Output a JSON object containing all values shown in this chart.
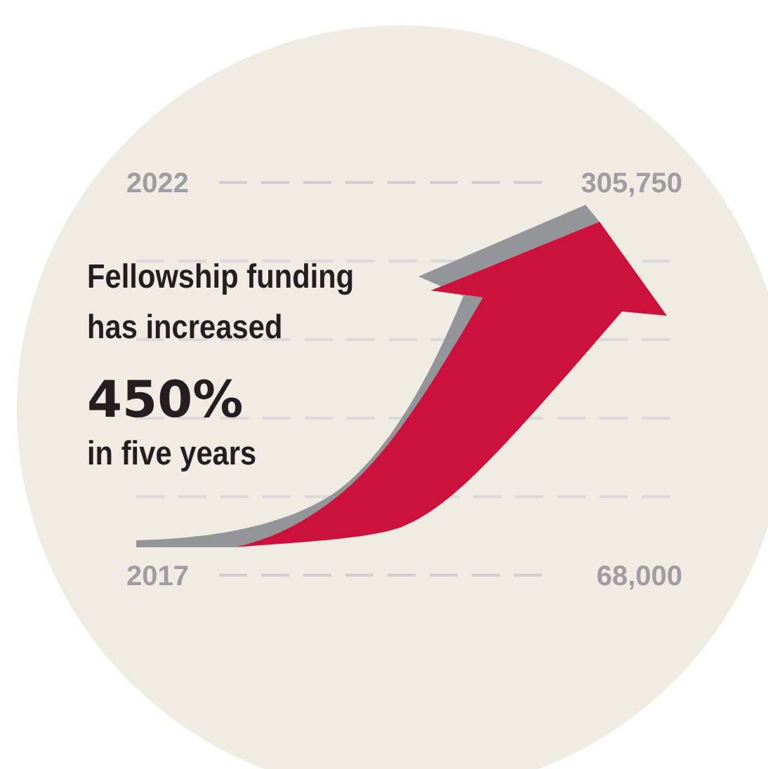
{
  "chart_data": {
    "type": "other",
    "categories": [
      "2017",
      "2022"
    ],
    "values": [
      68000,
      305750
    ],
    "value_labels": [
      "68,000",
      "305,750"
    ],
    "annotations": [
      "Fellowship funding",
      "has increased",
      "450%",
      "in five years"
    ]
  }
}
